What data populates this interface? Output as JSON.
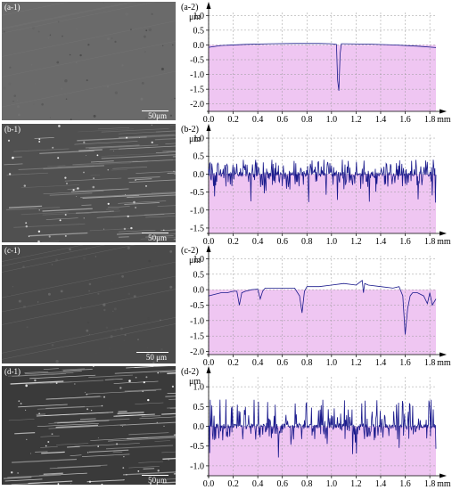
{
  "sem_panels": [
    {
      "label": "(a-1)",
      "scale": "50μm",
      "tone": "#6a6a6a",
      "texture": "smooth"
    },
    {
      "label": "(b-1)",
      "scale": "50μm",
      "tone": "#505050",
      "texture": "scratched"
    },
    {
      "label": "(c-1)",
      "scale": "50 μm",
      "tone": "#4a4a4a",
      "texture": "smooth"
    },
    {
      "label": "(d-1)",
      "scale": "50μm",
      "tone": "#3a3a3a",
      "texture": "scratched-bright"
    }
  ],
  "chart_data": [
    {
      "type": "line",
      "label": "(a-2)",
      "ylabel": "μm",
      "xunit": "mm",
      "x_ticks": [
        "0.0",
        "0.2",
        "0.4",
        "0.6",
        "0.8",
        "1.0",
        "1.2",
        "1.4",
        "1.6",
        "1.8"
      ],
      "y_ticks": [
        "1.0",
        "0.5",
        "0.0",
        "-0.5",
        "-1.0",
        "-1.5",
        "-2.0"
      ],
      "xlim": [
        0,
        1.85
      ],
      "ylim": [
        -2.25,
        1.1
      ],
      "series": [
        {
          "x": [
            0.0,
            0.1,
            0.3,
            0.5,
            0.7,
            0.9,
            1.0,
            1.04,
            1.05,
            1.06,
            1.07,
            1.08,
            1.1,
            1.3,
            1.5,
            1.7,
            1.85
          ],
          "y": [
            -0.08,
            -0.02,
            0.02,
            0.04,
            0.05,
            0.05,
            0.04,
            0.02,
            -1.2,
            -1.55,
            -0.3,
            0.04,
            0.04,
            0.03,
            0.0,
            -0.04,
            -0.09
          ]
        }
      ],
      "colors": {
        "line": "#1a1a8c",
        "fill": "#efc6f2"
      }
    },
    {
      "type": "line",
      "label": "(b-2)",
      "ylabel": "μm",
      "xunit": "mm",
      "x_ticks": [
        "0.0",
        "0.2",
        "0.4",
        "0.6",
        "0.8",
        "1.0",
        "1.2",
        "1.4",
        "1.6",
        "1.8"
      ],
      "y_ticks": [
        "1.0",
        "0.5",
        "0.0",
        "-0.5",
        "-1.0",
        "-1.5"
      ],
      "xlim": [
        0,
        1.85
      ],
      "ylim": [
        -1.65,
        1.1
      ],
      "series": [
        {
          "noise": true,
          "amp_up": 0.4,
          "amp_down": 0.8,
          "baseline": 0.0,
          "samples": 420,
          "seed": 11
        }
      ],
      "colors": {
        "line": "#1a1a8c",
        "fill": "#efc6f2"
      }
    },
    {
      "type": "line",
      "label": "(c-2)",
      "ylabel": "μm",
      "xunit": "mm",
      "x_ticks": [
        "0.0",
        "0.2",
        "0.4",
        "0.6",
        "0.8",
        "1.0",
        "1.2",
        "1.4",
        "1.6",
        "1.8"
      ],
      "y_ticks": [
        "1.0",
        "0.5",
        "0.0",
        "-0.5",
        "-1.0",
        "-1.5",
        "-2.0"
      ],
      "xlim": [
        0,
        1.85
      ],
      "ylim": [
        -2.1,
        1.1
      ],
      "series": [
        {
          "x": [
            0.0,
            0.05,
            0.1,
            0.15,
            0.2,
            0.23,
            0.25,
            0.27,
            0.3,
            0.35,
            0.4,
            0.42,
            0.44,
            0.46,
            0.5,
            0.6,
            0.7,
            0.74,
            0.76,
            0.78,
            0.8,
            0.9,
            1.0,
            1.1,
            1.2,
            1.25,
            1.26,
            1.27,
            1.3,
            1.4,
            1.5,
            1.55,
            1.58,
            1.6,
            1.62,
            1.64,
            1.66,
            1.7,
            1.75,
            1.78,
            1.8,
            1.82,
            1.85
          ],
          "y": [
            -0.2,
            -0.15,
            -0.1,
            -0.1,
            -0.05,
            -0.05,
            -0.5,
            -0.1,
            -0.05,
            0.0,
            0.02,
            -0.3,
            -0.05,
            0.05,
            0.05,
            0.05,
            0.05,
            -0.2,
            -0.75,
            -0.05,
            0.1,
            0.1,
            0.15,
            0.2,
            0.15,
            0.3,
            -0.1,
            0.2,
            0.15,
            0.1,
            0.05,
            0.1,
            -0.2,
            -1.45,
            -0.6,
            -0.2,
            -0.1,
            -0.1,
            -0.2,
            -0.45,
            -0.1,
            -0.5,
            -0.3
          ]
        }
      ],
      "colors": {
        "line": "#1a1a8c",
        "fill": "#efc6f2"
      }
    },
    {
      "type": "line",
      "label": "(d-2)",
      "ylabel": "μm",
      "xunit": "mm",
      "x_ticks": [
        "0.0",
        "0.2",
        "0.4",
        "0.6",
        "0.8",
        "1.0",
        "1.2",
        "1.4",
        "1.6",
        "1.8"
      ],
      "y_ticks": [
        "1.0",
        "0.5",
        "0.0",
        "-0.5",
        "-1.0"
      ],
      "xlim": [
        0,
        1.85
      ],
      "ylim": [
        -1.25,
        1.25
      ],
      "series": [
        {
          "noise": true,
          "amp_up": 0.7,
          "amp_down": 0.8,
          "baseline": 0.0,
          "samples": 420,
          "seed": 29
        }
      ],
      "colors": {
        "line": "#1a1a8c",
        "fill": "#efc6f2"
      }
    }
  ]
}
